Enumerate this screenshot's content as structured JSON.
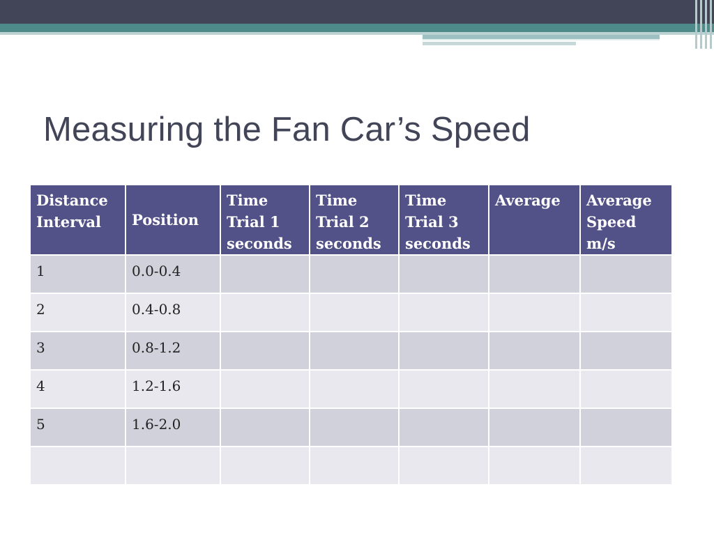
{
  "slide": {
    "title": "Measuring the Fan Car’s Speed"
  },
  "table": {
    "headers": [
      [
        "Distance",
        "Interval"
      ],
      [
        "Position"
      ],
      [
        "Time",
        "Trial 1",
        "seconds"
      ],
      [
        "Time",
        "Trial 2",
        "seconds"
      ],
      [
        "Time",
        "Trial 3",
        "seconds"
      ],
      [
        "Average"
      ],
      [
        "Average",
        "Speed",
        "m/s"
      ]
    ],
    "rows": [
      [
        "1",
        "0.0-0.4",
        "",
        "",
        "",
        "",
        ""
      ],
      [
        "2",
        "0.4-0.8",
        "",
        "",
        "",
        "",
        ""
      ],
      [
        "3",
        "0.8-1.2",
        "",
        "",
        "",
        "",
        ""
      ],
      [
        "4",
        "1.2-1.6",
        "",
        "",
        "",
        "",
        ""
      ],
      [
        "5",
        "1.6-2.0",
        "",
        "",
        "",
        "",
        ""
      ],
      [
        "",
        "",
        "",
        "",
        "",
        "",
        ""
      ]
    ]
  },
  "colors": {
    "header_bg": "#525288",
    "row_odd": "#d1d1dc",
    "row_even": "#e8e8ee",
    "title": "#424457"
  }
}
